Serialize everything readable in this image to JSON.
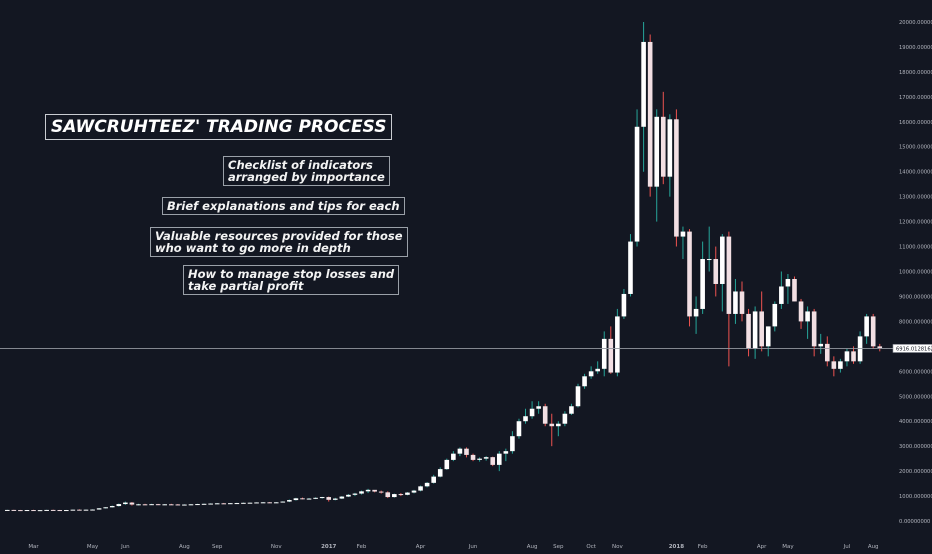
{
  "colors": {
    "background": "#131722",
    "up_candle": "#ffffff",
    "down_candle": "#f2dfe3",
    "up_wick": "#26a69a",
    "down_wick": "#ef5350",
    "axis_text": "#b2b5be",
    "price_line": "#9598a1"
  },
  "chart_data": {
    "type": "candlestick",
    "title": "SAWCRUHTEEZ' TRADING PROCESS",
    "annotations": [
      "Checklist of indicators\narranged by importance",
      "Brief explanations and tips for each",
      "Valuable resources provided for those\nwho want to go more in depth",
      "How to manage stop losses and\ntake partial profit"
    ],
    "current_price_label": "6916.01281624",
    "current_price": 6916.01,
    "ylim": [
      -600,
      20400
    ],
    "y_ticks": [
      0,
      1000,
      2000,
      3000,
      4000,
      5000,
      6000,
      7000,
      8000,
      9000,
      10000,
      11000,
      12000,
      13000,
      14000,
      15000,
      16000,
      17000,
      18000,
      19000,
      20000
    ],
    "y_tick_labels": [
      "0.00000000",
      "1000.00000000",
      "2000.00000000",
      "3000.00000000",
      "4000.00000000",
      "5000.00000000",
      "6000.00000000",
      "7000.00000000",
      "8000.00000000",
      "9000.00000000",
      "10000.00000000",
      "11000.00000000",
      "12000.00000000",
      "13000.00000000",
      "14000.00000000",
      "15000.00000000",
      "16000.00000000",
      "17000.00000000",
      "18000.00000000",
      "19000.00000000",
      "20000.00000000"
    ],
    "x_tick_labels": [
      {
        "label": "Mar",
        "index": 4,
        "bold": false
      },
      {
        "label": "May",
        "index": 13,
        "bold": false
      },
      {
        "label": "Jun",
        "index": 18,
        "bold": false
      },
      {
        "label": "Aug",
        "index": 27,
        "bold": false
      },
      {
        "label": "Sep",
        "index": 32,
        "bold": false
      },
      {
        "label": "Nov",
        "index": 41,
        "bold": false
      },
      {
        "label": "2017",
        "index": 49,
        "bold": true
      },
      {
        "label": "Feb",
        "index": 54,
        "bold": false
      },
      {
        "label": "Apr",
        "index": 63,
        "bold": false
      },
      {
        "label": "Jun",
        "index": 71,
        "bold": false
      },
      {
        "label": "Aug",
        "index": 80,
        "bold": false
      },
      {
        "label": "Sep",
        "index": 84,
        "bold": false
      },
      {
        "label": "Oct",
        "index": 89,
        "bold": false
      },
      {
        "label": "Nov",
        "index": 93,
        "bold": false
      },
      {
        "label": "2018",
        "index": 102,
        "bold": true
      },
      {
        "label": "Feb",
        "index": 106,
        "bold": false
      },
      {
        "label": "Apr",
        "index": 115,
        "bold": false
      },
      {
        "label": "May",
        "index": 119,
        "bold": false
      },
      {
        "label": "Jul",
        "index": 128,
        "bold": false
      },
      {
        "label": "Aug",
        "index": 132,
        "bold": false
      }
    ],
    "candles": [
      [
        440,
        450,
        430,
        445
      ],
      [
        445,
        450,
        430,
        438
      ],
      [
        438,
        445,
        425,
        432
      ],
      [
        432,
        445,
        420,
        440
      ],
      [
        440,
        450,
        425,
        430
      ],
      [
        430,
        440,
        420,
        436
      ],
      [
        436,
        450,
        430,
        445
      ],
      [
        445,
        455,
        435,
        440
      ],
      [
        440,
        445,
        425,
        432
      ],
      [
        432,
        445,
        430,
        440
      ],
      [
        440,
        460,
        435,
        455
      ],
      [
        455,
        470,
        445,
        450
      ],
      [
        450,
        460,
        440,
        455
      ],
      [
        455,
        470,
        450,
        460
      ],
      [
        460,
        520,
        455,
        510
      ],
      [
        510,
        560,
        500,
        550
      ],
      [
        550,
        620,
        540,
        600
      ],
      [
        600,
        700,
        580,
        680
      ],
      [
        680,
        780,
        650,
        740
      ],
      [
        740,
        760,
        620,
        660
      ],
      [
        660,
        690,
        630,
        670
      ],
      [
        670,
        690,
        640,
        660
      ],
      [
        660,
        690,
        650,
        675
      ],
      [
        675,
        685,
        640,
        660
      ],
      [
        660,
        680,
        640,
        670
      ],
      [
        670,
        690,
        650,
        665
      ],
      [
        665,
        680,
        640,
        650
      ],
      [
        650,
        670,
        630,
        660
      ],
      [
        660,
        680,
        640,
        670
      ],
      [
        670,
        690,
        650,
        680
      ],
      [
        680,
        700,
        660,
        690
      ],
      [
        690,
        710,
        670,
        700
      ],
      [
        700,
        720,
        680,
        710
      ],
      [
        710,
        725,
        690,
        705
      ],
      [
        705,
        720,
        690,
        715
      ],
      [
        715,
        730,
        700,
        720
      ],
      [
        720,
        740,
        710,
        730
      ],
      [
        730,
        745,
        710,
        735
      ],
      [
        735,
        750,
        720,
        745
      ],
      [
        745,
        760,
        730,
        750
      ],
      [
        750,
        760,
        720,
        730
      ],
      [
        730,
        760,
        720,
        750
      ],
      [
        750,
        790,
        740,
        780
      ],
      [
        780,
        860,
        760,
        840
      ],
      [
        840,
        930,
        820,
        910
      ],
      [
        910,
        940,
        870,
        890
      ],
      [
        890,
        920,
        860,
        900
      ],
      [
        900,
        950,
        880,
        930
      ],
      [
        930,
        970,
        900,
        960
      ],
      [
        960,
        980,
        780,
        850
      ],
      [
        850,
        930,
        830,
        900
      ],
      [
        900,
        1000,
        880,
        980
      ],
      [
        980,
        1080,
        960,
        1050
      ],
      [
        1050,
        1130,
        1000,
        1100
      ],
      [
        1100,
        1220,
        1060,
        1190
      ],
      [
        1190,
        1290,
        1120,
        1250
      ],
      [
        1250,
        1240,
        1150,
        1180
      ],
      [
        1180,
        1220,
        1100,
        1150
      ],
      [
        1150,
        1190,
        920,
        960
      ],
      [
        960,
        1100,
        940,
        1080
      ],
      [
        1080,
        1120,
        1000,
        1050
      ],
      [
        1050,
        1160,
        1030,
        1140
      ],
      [
        1140,
        1250,
        1110,
        1220
      ],
      [
        1220,
        1420,
        1190,
        1390
      ],
      [
        1390,
        1560,
        1350,
        1530
      ],
      [
        1530,
        1850,
        1500,
        1780
      ],
      [
        1780,
        2150,
        1750,
        2080
      ],
      [
        2080,
        2500,
        2050,
        2450
      ],
      [
        2450,
        2800,
        2400,
        2700
      ],
      [
        2700,
        2950,
        2600,
        2900
      ],
      [
        2900,
        2950,
        2550,
        2650
      ],
      [
        2650,
        2700,
        2400,
        2450
      ],
      [
        2450,
        2550,
        2380,
        2500
      ],
      [
        2500,
        2600,
        2420,
        2560
      ],
      [
        2560,
        2580,
        2200,
        2250
      ],
      [
        2250,
        2800,
        2000,
        2700
      ],
      [
        2700,
        2900,
        2400,
        2800
      ],
      [
        2800,
        3600,
        2700,
        3400
      ],
      [
        3400,
        4100,
        3300,
        4000
      ],
      [
        4000,
        4500,
        3900,
        4200
      ],
      [
        4200,
        4800,
        4100,
        4500
      ],
      [
        4500,
        4800,
        4300,
        4600
      ],
      [
        4600,
        4700,
        3800,
        3900
      ],
      [
        3900,
        4300,
        3000,
        3800
      ],
      [
        3800,
        4000,
        3400,
        3900
      ],
      [
        3900,
        4400,
        3800,
        4300
      ],
      [
        4300,
        4700,
        4250,
        4600
      ],
      [
        4600,
        5500,
        4550,
        5400
      ],
      [
        5400,
        5900,
        5300,
        5800
      ],
      [
        5800,
        6200,
        5700,
        6000
      ],
      [
        6000,
        6400,
        5900,
        6100
      ],
      [
        6100,
        7600,
        5800,
        7300
      ],
      [
        7300,
        7800,
        5900,
        5950
      ],
      [
        5950,
        8500,
        5800,
        8200
      ],
      [
        8200,
        9300,
        8100,
        9100
      ],
      [
        9100,
        11500,
        9000,
        11200
      ],
      [
        11200,
        16500,
        11000,
        15800
      ],
      [
        15800,
        20000,
        14000,
        19200
      ],
      [
        19200,
        19500,
        13000,
        13400
      ],
      [
        13400,
        16500,
        12000,
        16200
      ],
      [
        16200,
        17200,
        13500,
        13800
      ],
      [
        13800,
        16300,
        13000,
        16100
      ],
      [
        16100,
        16500,
        11000,
        11400
      ],
      [
        11400,
        11800,
        10500,
        11600
      ],
      [
        11600,
        11700,
        7800,
        8200
      ],
      [
        8200,
        9000,
        7500,
        8500
      ],
      [
        8500,
        11200,
        8300,
        10500
      ],
      [
        10500,
        11800,
        10000,
        10500
      ],
      [
        10500,
        11000,
        9000,
        9500
      ],
      [
        9500,
        11500,
        8400,
        11400
      ],
      [
        11400,
        11600,
        6200,
        8300
      ],
      [
        8300,
        9700,
        7900,
        9200
      ],
      [
        9200,
        9600,
        8000,
        8300
      ],
      [
        8300,
        8500,
        6600,
        6900
      ],
      [
        6900,
        8600,
        6500,
        8400
      ],
      [
        8400,
        9200,
        6800,
        7000
      ],
      [
        7000,
        7800,
        6600,
        7800
      ],
      [
        7800,
        8800,
        7600,
        8700
      ],
      [
        8700,
        10000,
        8500,
        9400
      ],
      [
        9400,
        9900,
        8700,
        9700
      ],
      [
        9700,
        9800,
        8800,
        8800
      ],
      [
        8800,
        8900,
        7700,
        8000
      ],
      [
        8000,
        8600,
        7300,
        8400
      ],
      [
        8400,
        8500,
        6600,
        7000
      ],
      [
        7000,
        7500,
        6700,
        7100
      ],
      [
        7100,
        7400,
        6200,
        6400
      ],
      [
        6400,
        6600,
        5800,
        6100
      ],
      [
        6100,
        6500,
        5950,
        6400
      ],
      [
        6400,
        6900,
        6200,
        6800
      ],
      [
        6800,
        7000,
        6300,
        6400
      ],
      [
        6400,
        7600,
        6300,
        7400
      ],
      [
        7400,
        8300,
        7100,
        8200
      ],
      [
        8200,
        8300,
        6900,
        7000
      ],
      [
        7000,
        7100,
        6800,
        6916
      ]
    ]
  }
}
